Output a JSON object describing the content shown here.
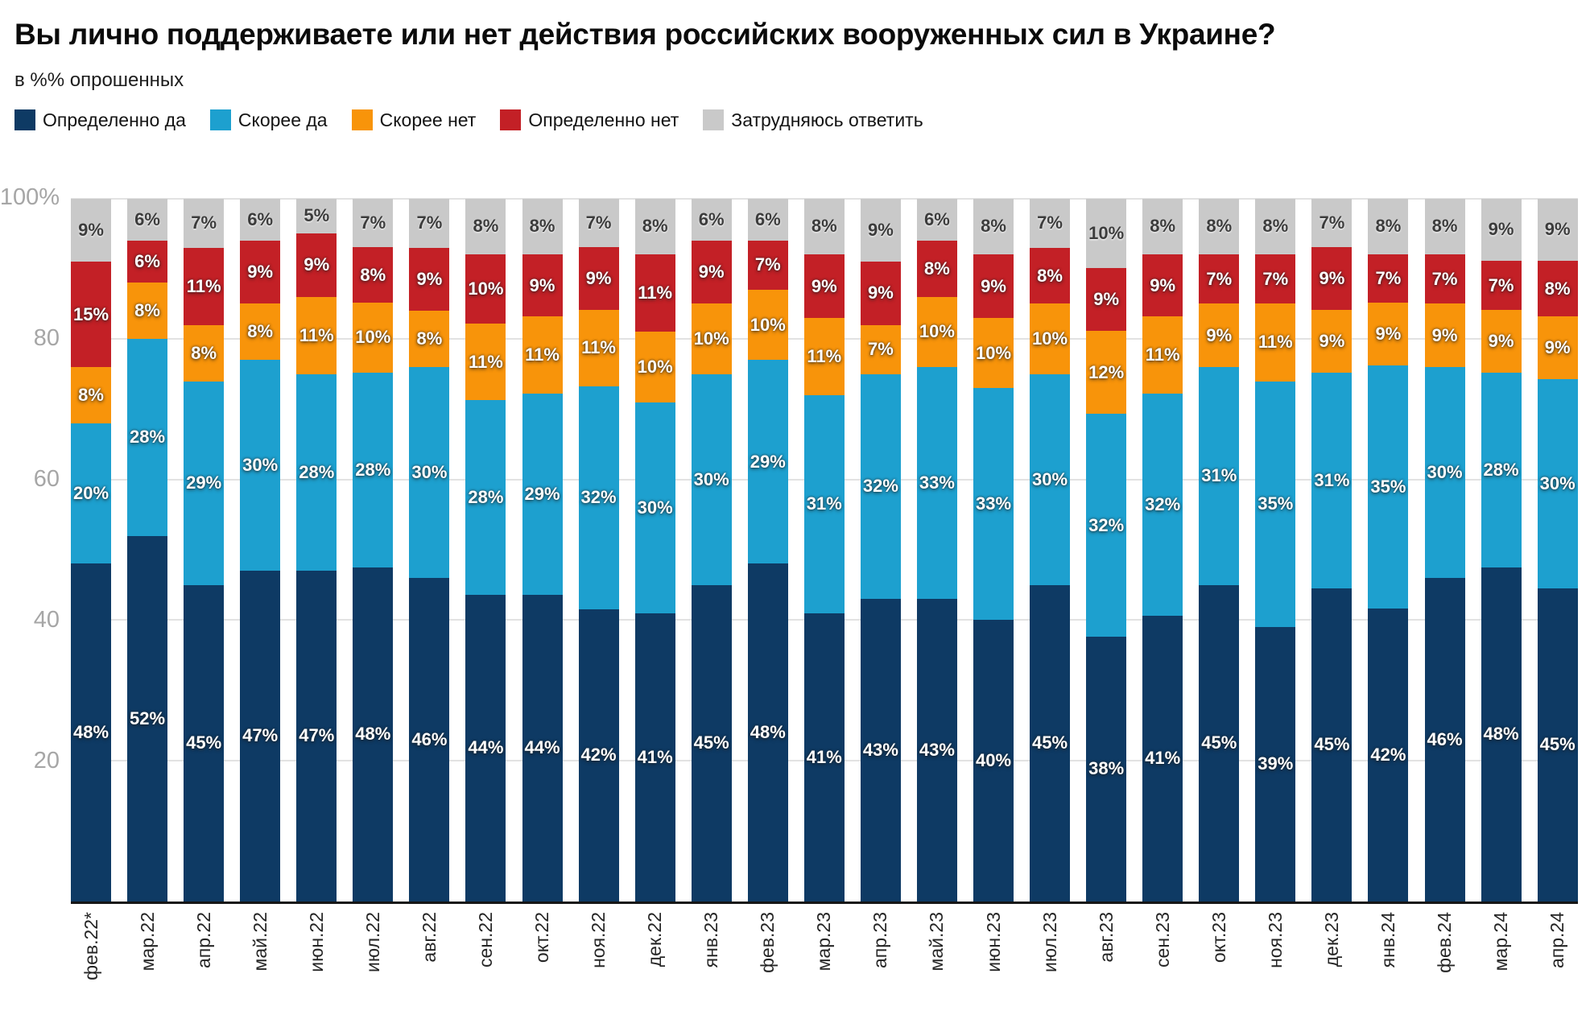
{
  "title": "Вы лично поддерживаете или нет действия российских вооруженных сил в Украине?",
  "subtitle": "в %% опрошенных",
  "y_axis": {
    "ticks": [
      "100%",
      "80",
      "60",
      "40",
      "20"
    ],
    "positions_pct": [
      0,
      20,
      40,
      60,
      80
    ]
  },
  "chart_data": {
    "type": "bar",
    "stacked": true,
    "orientation": "vertical",
    "grid": true,
    "legend_position": "top",
    "ylim": [
      0,
      100
    ],
    "value_suffix": "%",
    "categories": [
      "фев.22*",
      "мар.22",
      "апр.22",
      "май.22",
      "июн.22",
      "июл.22",
      "авг.22",
      "сен.22",
      "окт.22",
      "ноя.22",
      "дек.22",
      "янв.23",
      "фев.23",
      "мар.23",
      "апр.23",
      "май.23",
      "июн.23",
      "июл.23",
      "авг.23",
      "сен.23",
      "окт.23",
      "ноя.23",
      "дек.23",
      "янв.24",
      "фев.24",
      "мар.24",
      "апр.24"
    ],
    "series": [
      {
        "name": "Определенно да",
        "color": "#0e3a64",
        "label_style": "light",
        "values": [
          48,
          52,
          45,
          47,
          47,
          48,
          46,
          44,
          44,
          42,
          41,
          45,
          48,
          41,
          43,
          43,
          40,
          45,
          38,
          41,
          45,
          39,
          45,
          42,
          46,
          48,
          45
        ]
      },
      {
        "name": "Скорее да",
        "color": "#1da0cf",
        "label_style": "light",
        "values": [
          20,
          28,
          29,
          30,
          28,
          28,
          30,
          28,
          29,
          32,
          30,
          30,
          29,
          31,
          32,
          33,
          33,
          30,
          32,
          32,
          31,
          35,
          31,
          35,
          30,
          28,
          30
        ]
      },
      {
        "name": "Скорее нет",
        "color": "#f8940a",
        "label_style": "light",
        "values": [
          8,
          8,
          8,
          8,
          11,
          10,
          8,
          11,
          11,
          11,
          10,
          10,
          10,
          11,
          7,
          10,
          10,
          10,
          12,
          11,
          9,
          11,
          9,
          9,
          9,
          9,
          9
        ]
      },
      {
        "name": "Определенно нет",
        "color": "#c32026",
        "label_style": "light",
        "values": [
          15,
          6,
          11,
          9,
          9,
          8,
          9,
          10,
          9,
          9,
          11,
          9,
          7,
          9,
          9,
          8,
          9,
          8,
          9,
          9,
          7,
          7,
          9,
          7,
          7,
          7,
          8
        ]
      },
      {
        "name": "Затрудняюсь ответить",
        "color": "#c9c9c9",
        "label_style": "dark",
        "values": [
          9,
          6,
          7,
          6,
          5,
          7,
          7,
          8,
          8,
          7,
          8,
          6,
          6,
          8,
          9,
          6,
          8,
          7,
          10,
          8,
          8,
          8,
          7,
          8,
          8,
          9,
          9
        ]
      }
    ]
  }
}
